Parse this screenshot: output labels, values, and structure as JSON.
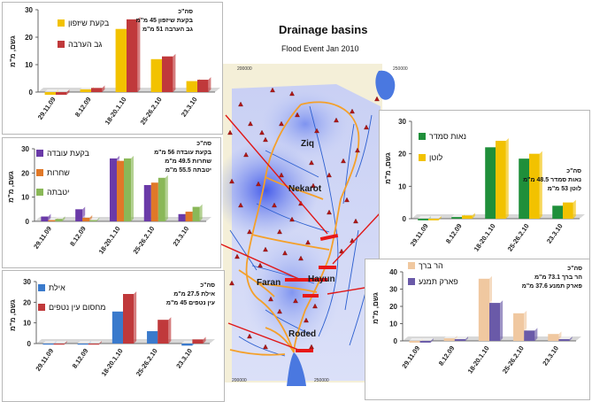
{
  "header": {
    "title": "Drainage basins",
    "subtitle": "Flood Event Jan 2010"
  },
  "map": {
    "place_labels": [
      "Ziq",
      "Nekarot",
      "Faran",
      "Hayun",
      "Roded"
    ],
    "grid_labels": [
      "200000",
      "250000",
      "200000",
      "250000"
    ],
    "colors": {
      "basin_outline": "#f4a02a",
      "rivers": "#2c5fd0",
      "sea": "#4a78e0",
      "stations": "#b01818",
      "rain": "#3a4ce0"
    }
  },
  "chart_data": [
    {
      "type": "bar",
      "panel": "arava-shizafon",
      "categories": [
        "29.11.09",
        "8.12.09",
        "18-20.1.10",
        "25-26.2.10",
        "23.3.10"
      ],
      "series": [
        {
          "name": "בקעת שיזפון",
          "color": "#f2c200",
          "values": [
            -1,
            1,
            23,
            12,
            4
          ]
        },
        {
          "name": "גב הערבה",
          "color": "#c0393b",
          "values": [
            -1,
            1.5,
            26.5,
            13,
            4.5
          ]
        }
      ],
      "ylabel": "גשם, מ\"מ",
      "ylim": [
        0,
        30
      ],
      "yticks": [
        0,
        10,
        20,
        30
      ],
      "note": [
        "סה\"כ",
        "בקעת שיזפון 45 מ\"מ",
        "גב הערבה 51 מ\"מ"
      ]
    },
    {
      "type": "bar",
      "panel": "uvda",
      "categories": [
        "29.11.09",
        "8.12.09",
        "18-20.1.10",
        "25-26.2.10",
        "23.3.10"
      ],
      "series": [
        {
          "name": "בקעת עובדה",
          "color": "#6a3aa8",
          "values": [
            2,
            5,
            26,
            15,
            3
          ]
        },
        {
          "name": "שחרות",
          "color": "#e07828",
          "values": [
            0.5,
            1.5,
            25,
            16,
            4
          ]
        },
        {
          "name": "יטבתה",
          "color": "#8ab858",
          "values": [
            1,
            0.5,
            26,
            18,
            6
          ]
        }
      ],
      "ylabel": "גשם, מ\"מ",
      "ylim": [
        0,
        30
      ],
      "yticks": [
        0,
        10,
        20,
        30
      ],
      "note": [
        "סה\"כ",
        "בקעת עובדה 56 מ\"מ",
        "שחרות 49.5 מ\"מ",
        "יטבתה 55.5 מ\"מ"
      ]
    },
    {
      "type": "bar",
      "panel": "eilat",
      "categories": [
        "29.11.09",
        "8.12.09",
        "18-20.1.10",
        "25-26.2.10",
        "23.3.10"
      ],
      "series": [
        {
          "name": "אילת",
          "color": "#3a7acc",
          "values": [
            -0.3,
            -0.3,
            15.5,
            6,
            -1
          ]
        },
        {
          "name": "מחסום עין נטפים",
          "color": "#c0393b",
          "values": [
            -0.3,
            -0.3,
            24,
            11.5,
            2
          ]
        }
      ],
      "ylabel": "גשם, מ\"מ",
      "ylim": [
        0,
        30
      ],
      "yticks": [
        0,
        10,
        20,
        30
      ],
      "note": [
        "סה\"כ",
        "אילת 27.5 מ\"מ",
        "עין נטפים 45 מ\"מ"
      ]
    },
    {
      "type": "bar",
      "panel": "lotan",
      "categories": [
        "29.11.09",
        "8.12.09",
        "18-20.1.10",
        "25-26.2.10",
        "23.3.10"
      ],
      "series": [
        {
          "name": "נאות סמדר",
          "color": "#1f8f3a",
          "values": [
            -0.5,
            0.5,
            22,
            18.5,
            4
          ]
        },
        {
          "name": "לוטן",
          "color": "#f2c200",
          "values": [
            -0.5,
            1,
            24,
            20,
            5
          ]
        }
      ],
      "ylabel": "גשם, מ\"מ",
      "ylim": [
        0,
        30
      ],
      "yticks": [
        0,
        10,
        20,
        30
      ],
      "note": [
        "סה\"כ",
        "נאות סמדר 48.5 מ\"מ",
        "לוטן 53 מ\"מ"
      ]
    },
    {
      "type": "bar",
      "panel": "barak",
      "categories": [
        "29.11.09",
        "8.12.09",
        "18-20.1.10",
        "25-26.2.10",
        "23.3.10"
      ],
      "series": [
        {
          "name": "הר ברך",
          "color": "#f0c8a0",
          "values": [
            -1,
            1.5,
            36,
            16,
            4
          ]
        },
        {
          "name": "פארק תמנע",
          "color": "#6a5aa8",
          "values": [
            -1,
            1,
            22,
            6,
            1
          ]
        }
      ],
      "ylabel": "גשם, מ\"מ",
      "ylim": [
        0,
        40
      ],
      "yticks": [
        0,
        10,
        20,
        30,
        40
      ],
      "note": [
        "סה\"כ",
        "הר ברך 73.1 מ\"מ",
        "פארק תמנע 37.6 מ\"מ"
      ]
    }
  ]
}
